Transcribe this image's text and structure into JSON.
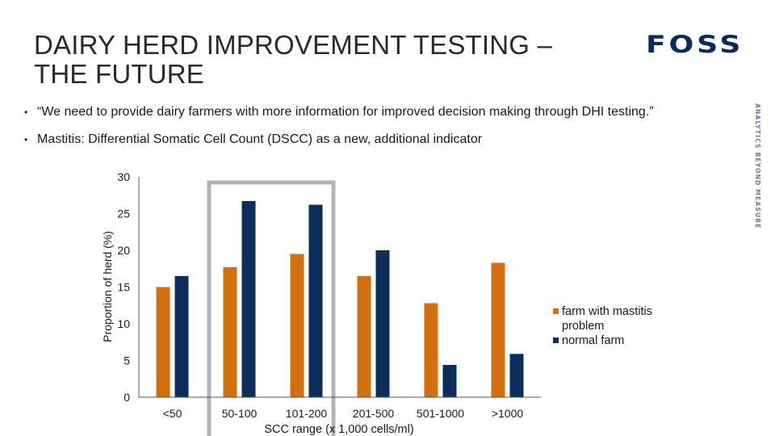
{
  "slide": {
    "title_lines": [
      "DAIRY HERD IMPROVEMENT TESTING –",
      "THE FUTURE"
    ],
    "logo_text": "FOSS",
    "tagline": "ANALYTICS BEYOND MEASURE",
    "bullets": [
      "“We need to provide dairy farmers with more information for improved decision making through DHI testing.”",
      "Mastitis: Differential Somatic Cell Count (DSCC) as a new, additional indicator"
    ]
  },
  "colors": {
    "mastitis": "#d2700f",
    "normal": "#0d2d5c",
    "highlight": "#b3b3b3",
    "logo": "#0a2a5e"
  },
  "chart_data": {
    "type": "bar",
    "categories": [
      "<50",
      "50-100",
      "101-200",
      "201-500",
      "501-1000",
      ">1000"
    ],
    "series": [
      {
        "name": "farm with mastitis problem",
        "color": "#d2700f",
        "values": [
          15,
          17.7,
          19.5,
          16.5,
          12.8,
          18.3
        ]
      },
      {
        "name": "normal farm",
        "color": "#0d2d5c",
        "values": [
          16.5,
          26.7,
          26.2,
          20,
          4.4,
          5.9
        ]
      }
    ],
    "xlabel": "SCC range (x 1,000 cells/ml)",
    "ylabel": "Proportion of herd (%)",
    "ylim": [
      0,
      30
    ],
    "yticks": [
      0,
      5,
      10,
      15,
      20,
      25,
      30
    ],
    "legend_position": "right",
    "highlight_categories": [
      "50-100",
      "101-200"
    ]
  }
}
